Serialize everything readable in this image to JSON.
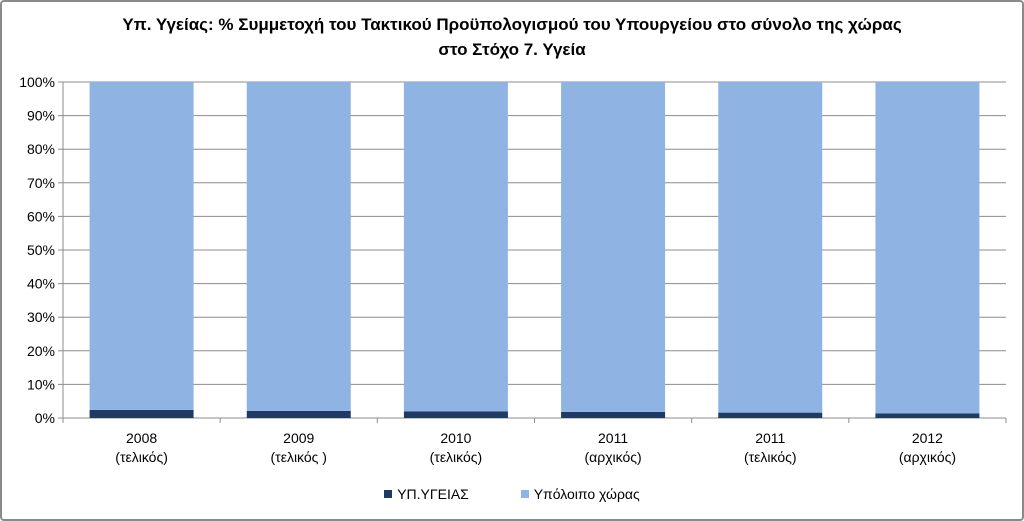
{
  "chart_data": {
    "type": "bar",
    "stacked": true,
    "percent_stacked": true,
    "title_line1": "Υπ. Υγείας: % Συμμετοχή του Τακτικού Προϋπολογισμού του Υπουργείου στο σύνολο της χώρας",
    "title_line2": "στο Στόχο 7. Υγεία",
    "categories": [
      {
        "year": "2008",
        "note": "(τελικός)"
      },
      {
        "year": "2009",
        "note": "(τελικός )"
      },
      {
        "year": "2010",
        "note": "(τελικός)"
      },
      {
        "year": "2011",
        "note": "(αρχικός)"
      },
      {
        "year": "2011",
        "note": "(τελικός)"
      },
      {
        "year": "2012",
        "note": "(αρχικός)"
      }
    ],
    "series": [
      {
        "name": "ΥΠ.ΥΓΕΙΑΣ",
        "color": "#1f3b63",
        "values": [
          2.4,
          2.1,
          2.0,
          1.8,
          1.6,
          1.4
        ]
      },
      {
        "name": "Υπόλοιπο χώρας",
        "color": "#8fb4e3",
        "values": [
          97.6,
          97.9,
          98.0,
          98.2,
          98.4,
          98.6
        ]
      }
    ],
    "ylim": [
      0,
      100
    ],
    "yticks": [
      "0%",
      "10%",
      "20%",
      "30%",
      "40%",
      "50%",
      "60%",
      "70%",
      "80%",
      "90%",
      "100%"
    ],
    "grid": true,
    "legend_position": "bottom"
  }
}
